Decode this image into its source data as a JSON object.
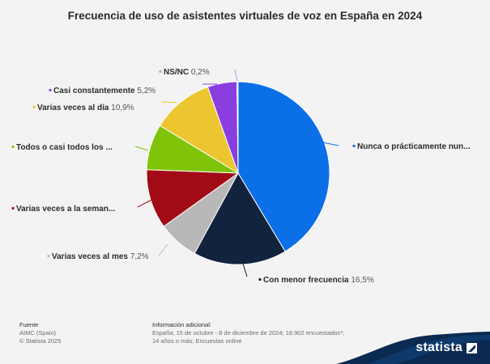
{
  "title": "Frecuencia de uso de asistentes virtuales de voz en España en 2024",
  "chart_data": {
    "type": "pie",
    "title": "Frecuencia de uso de asistentes virtuales de voz en España en 2024",
    "slices": [
      {
        "name": "Nunca o prácticamente nun...",
        "value": 41.4,
        "value_label": "",
        "color": "#0b6fe8"
      },
      {
        "name": "Con menor frecuencia",
        "value": 16.5,
        "value_label": "16,5%",
        "color": "#12233d"
      },
      {
        "name": "Varias veces al mes",
        "value": 7.2,
        "value_label": "7,2%",
        "color": "#b8b8b8"
      },
      {
        "name": "Varias veces a la seman...",
        "value": 10.5,
        "value_label": "",
        "color": "#a20b16"
      },
      {
        "name": "Todos o casi todos los ...",
        "value": 8.1,
        "value_label": "",
        "color": "#7fc408"
      },
      {
        "name": "Varias veces al día",
        "value": 10.9,
        "value_label": "10,9%",
        "color": "#ecc630"
      },
      {
        "name": "Casi constantemente",
        "value": 5.2,
        "value_label": "5,2%",
        "color": "#8a3ee0"
      },
      {
        "name": "NS/NC",
        "value": 0.2,
        "value_label": "0,2%",
        "color": "#b79be8"
      }
    ],
    "start_angle_deg": 0,
    "direction": "clockwise"
  },
  "footer": {
    "source_heading": "Fuente",
    "source_lines": [
      "AIMC (Spain)",
      "© Statista 2025"
    ],
    "info_heading": "Información adicional:",
    "info_lines": [
      "España; 15 de octubre - 8 de diciembre de 2024; 18.902 encuestados*;",
      "14 años o más; Encuestas online"
    ]
  },
  "brand": {
    "name": "statista",
    "color": "#0a2a52"
  }
}
